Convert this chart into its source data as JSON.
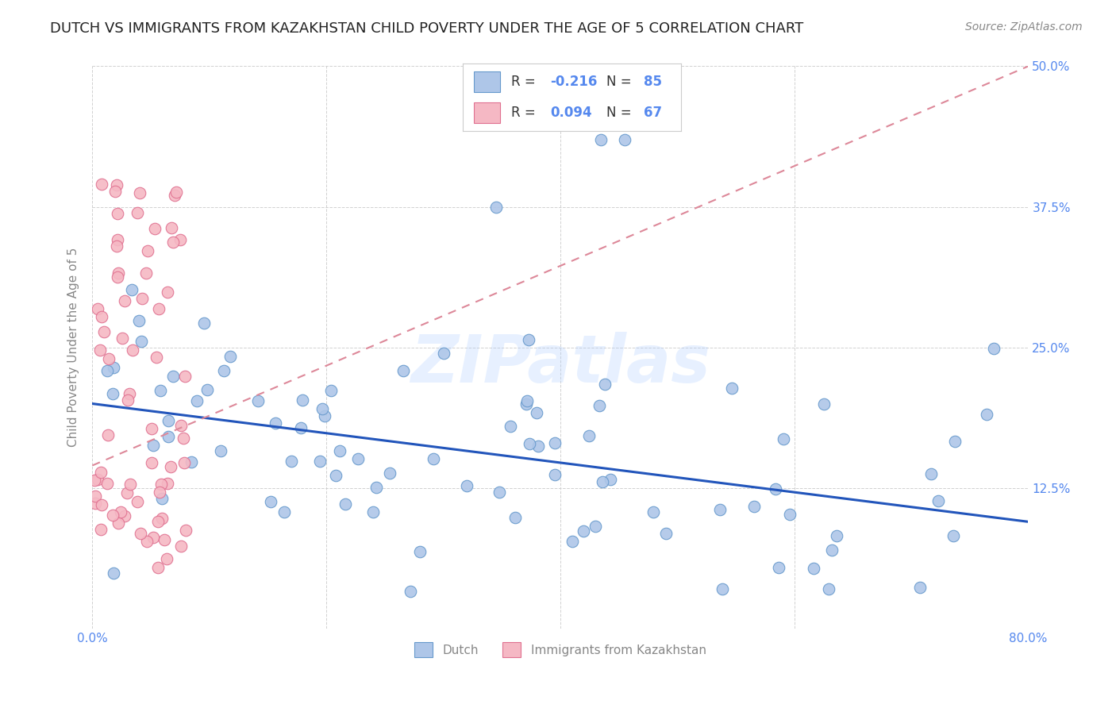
{
  "title": "DUTCH VS IMMIGRANTS FROM KAZAKHSTAN CHILD POVERTY UNDER THE AGE OF 5 CORRELATION CHART",
  "source": "Source: ZipAtlas.com",
  "ylabel": "Child Poverty Under the Age of 5",
  "xlim": [
    0.0,
    0.8
  ],
  "ylim": [
    0.0,
    0.5
  ],
  "dutch_color": "#aec6e8",
  "dutch_edge": "#6699cc",
  "kaz_color": "#f5b8c4",
  "kaz_edge": "#e07090",
  "trend_dutch_color": "#2255bb",
  "trend_kaz_color": "#dd8899",
  "trend_dutch_x0": 0.0,
  "trend_dutch_y0": 0.2,
  "trend_dutch_x1": 0.8,
  "trend_dutch_y1": 0.095,
  "trend_kaz_x0": 0.0,
  "trend_kaz_y0": 0.145,
  "trend_kaz_x1": 0.8,
  "trend_kaz_y1": 0.5,
  "watermark": "ZIPatlas",
  "background_color": "#ffffff",
  "grid_color": "#cccccc",
  "title_color": "#222222",
  "axis_label_color": "#888888",
  "tick_color": "#5588ee",
  "right_tick_color": "#5588ee",
  "title_fontsize": 13,
  "label_fontsize": 11,
  "tick_fontsize": 11,
  "source_fontsize": 10,
  "dutch_N": 85,
  "kaz_N": 67,
  "dutch_R": -0.216,
  "kaz_R": 0.094,
  "scatter_size": 110
}
